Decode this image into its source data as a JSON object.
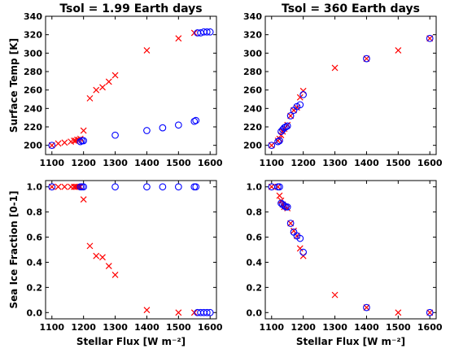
{
  "chart_data": [
    {
      "type": "scatter",
      "title": "Tsol = 1.99 Earth days",
      "xlabel": "",
      "ylabel": "Surface Temp [K]",
      "xlim": [
        1080,
        1620
      ],
      "ylim": [
        190,
        340
      ],
      "xticks": [
        1100,
        1200,
        1300,
        1400,
        1500,
        1600
      ],
      "yticks": [
        200,
        220,
        240,
        260,
        280,
        300,
        320,
        340
      ],
      "series": [
        {
          "marker": "x",
          "color": "#ff0000",
          "x": [
            1100,
            1120,
            1140,
            1160,
            1170,
            1175,
            1180,
            1185,
            1190,
            1200,
            1220,
            1240,
            1260,
            1280,
            1300,
            1400,
            1500,
            1550
          ],
          "y": [
            200,
            202,
            203,
            204,
            205,
            205,
            206,
            206,
            207,
            216,
            251,
            260,
            263,
            269,
            276,
            303,
            316,
            322
          ]
        },
        {
          "marker": "o",
          "color": "#0000ff",
          "x": [
            1100,
            1190,
            1195,
            1200,
            1300,
            1400,
            1450,
            1500,
            1550,
            1555,
            1560,
            1570,
            1580,
            1590,
            1600
          ],
          "y": [
            200,
            204,
            205,
            205,
            211,
            216,
            219,
            222,
            226,
            227,
            322,
            322,
            323,
            323,
            323
          ]
        }
      ]
    },
    {
      "type": "scatter",
      "title": "Tsol = 360 Earth days",
      "xlabel": "",
      "ylabel": "",
      "xlim": [
        1080,
        1620
      ],
      "ylim": [
        190,
        340
      ],
      "xticks": [
        1100,
        1200,
        1300,
        1400,
        1500,
        1600
      ],
      "yticks": [
        200,
        220,
        240,
        260,
        280,
        300,
        320,
        340
      ],
      "series": [
        {
          "marker": "x",
          "color": "#ff0000",
          "x": [
            1100,
            1120,
            1125,
            1130,
            1135,
            1140,
            1150,
            1160,
            1170,
            1180,
            1190,
            1200,
            1300,
            1400,
            1500,
            1600
          ],
          "y": [
            200,
            205,
            207,
            211,
            215,
            218,
            222,
            232,
            238,
            241,
            252,
            259,
            284,
            294,
            303,
            316
          ]
        },
        {
          "marker": "o",
          "color": "#0000ff",
          "x": [
            1100,
            1120,
            1125,
            1130,
            1135,
            1140,
            1145,
            1150,
            1160,
            1170,
            1180,
            1190,
            1200,
            1400,
            1600
          ],
          "y": [
            200,
            204,
            205,
            215,
            217,
            219,
            220,
            221,
            232,
            238,
            242,
            244,
            255,
            294,
            316
          ]
        }
      ]
    },
    {
      "type": "scatter",
      "title": "",
      "xlabel": "Stellar Flux [W m⁻²]",
      "ylabel": "Sea Ice Fraction [0-1]",
      "xlim": [
        1080,
        1620
      ],
      "ylim": [
        -0.05,
        1.05
      ],
      "xticks": [
        1100,
        1200,
        1300,
        1400,
        1500,
        1600
      ],
      "yticks": [
        0.0,
        0.2,
        0.4,
        0.6,
        0.8,
        1.0
      ],
      "series": [
        {
          "marker": "x",
          "color": "#ff0000",
          "x": [
            1100,
            1120,
            1140,
            1160,
            1170,
            1175,
            1180,
            1185,
            1190,
            1200,
            1220,
            1240,
            1260,
            1280,
            1300,
            1400,
            1500,
            1550
          ],
          "y": [
            1.0,
            1.0,
            1.0,
            1.0,
            1.0,
            1.0,
            1.0,
            1.0,
            1.0,
            0.9,
            0.53,
            0.45,
            0.44,
            0.37,
            0.3,
            0.02,
            0.0,
            0.0
          ]
        },
        {
          "marker": "o",
          "color": "#0000ff",
          "x": [
            1100,
            1190,
            1195,
            1200,
            1300,
            1400,
            1450,
            1500,
            1550,
            1555,
            1560,
            1570,
            1580,
            1590,
            1600
          ],
          "y": [
            1.0,
            1.0,
            1.0,
            1.0,
            1.0,
            1.0,
            1.0,
            1.0,
            1.0,
            1.0,
            0.0,
            0.0,
            0.0,
            0.0,
            0.0
          ]
        }
      ]
    },
    {
      "type": "scatter",
      "title": "",
      "xlabel": "Stellar Flux [W m⁻²]",
      "ylabel": "",
      "xlim": [
        1080,
        1620
      ],
      "ylim": [
        -0.05,
        1.05
      ],
      "xticks": [
        1100,
        1200,
        1300,
        1400,
        1500,
        1600
      ],
      "yticks": [
        0.0,
        0.2,
        0.4,
        0.6,
        0.8,
        1.0
      ],
      "series": [
        {
          "marker": "x",
          "color": "#ff0000",
          "x": [
            1100,
            1120,
            1125,
            1130,
            1135,
            1140,
            1150,
            1160,
            1170,
            1180,
            1190,
            1200,
            1300,
            1400,
            1500,
            1600
          ],
          "y": [
            1.0,
            1.0,
            0.93,
            0.89,
            0.86,
            0.84,
            0.83,
            0.71,
            0.65,
            0.61,
            0.51,
            0.45,
            0.14,
            0.04,
            0.0,
            0.0
          ]
        },
        {
          "marker": "o",
          "color": "#0000ff",
          "x": [
            1100,
            1120,
            1125,
            1130,
            1135,
            1140,
            1145,
            1150,
            1160,
            1170,
            1180,
            1190,
            1200,
            1400,
            1600
          ],
          "y": [
            1.0,
            1.0,
            1.0,
            0.87,
            0.86,
            0.85,
            0.84,
            0.84,
            0.71,
            0.64,
            0.61,
            0.59,
            0.48,
            0.04,
            0.0
          ]
        }
      ]
    }
  ]
}
